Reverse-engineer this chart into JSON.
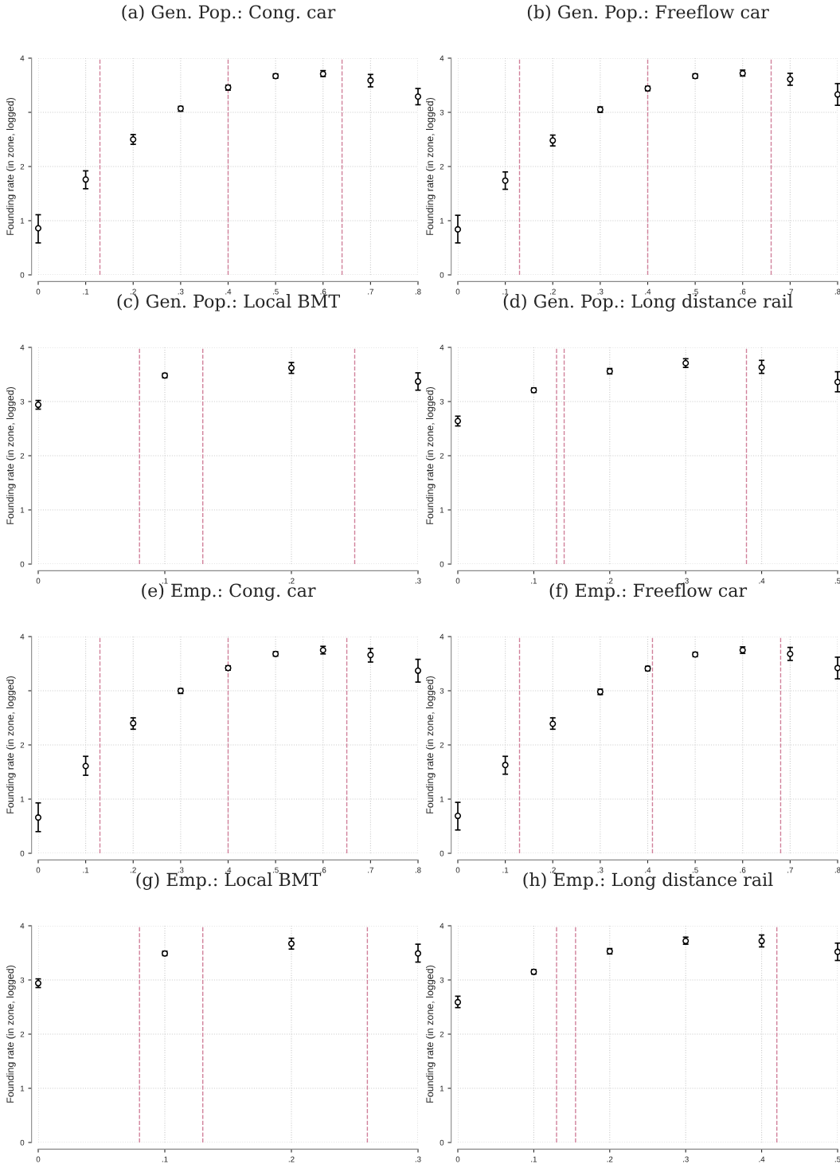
{
  "chart_data": [
    {
      "type": "scatter",
      "title": "(a) Gen. Pop.: Cong. car",
      "ylabel": "Founding rate (in zone, logged)",
      "x": [
        0,
        0.1,
        0.2,
        0.3,
        0.4,
        0.5,
        0.6,
        0.7,
        0.8
      ],
      "series": [
        {
          "color": "#000000",
          "values": [
            0.86,
            1.76,
            2.5,
            3.07,
            3.46,
            3.67,
            3.71,
            3.59,
            3.29
          ],
          "errors": [
            [
              0.59,
              1.11
            ],
            [
              1.59,
              1.92
            ],
            [
              2.41,
              2.59
            ],
            [
              3.02,
              3.11
            ],
            [
              3.41,
              3.5
            ],
            [
              3.63,
              3.71
            ],
            [
              3.66,
              3.77
            ],
            [
              3.47,
              3.7
            ],
            [
              3.14,
              3.44
            ]
          ]
        }
      ],
      "xlim": [
        0,
        0.8
      ],
      "xticks": [
        0,
        {
          "value": 0.1,
          "label": ".1"
        },
        {
          "value": 0.2,
          "label": ".2"
        },
        {
          "value": 0.3,
          "label": ".3"
        },
        {
          "value": 0.4,
          "label": ".4"
        },
        {
          "value": 0.5,
          "label": ".5"
        },
        {
          "value": 0.6,
          "label": ".6"
        },
        {
          "value": 0.7,
          "label": ".7"
        },
        {
          "value": 0.8,
          "label": ".8"
        }
      ],
      "ylim": [
        0,
        4
      ],
      "yticks": [
        0,
        1,
        2,
        {
          "value": 3,
          "label": null
        },
        4
      ],
      "grid": true,
      "marker": "circle",
      "ref_lines": [
        {
          "axis": "x",
          "value": 0.13,
          "color": "#d0809a",
          "line_style": "dashed"
        },
        {
          "axis": "x",
          "value": 0.4,
          "color": "#d0809a",
          "line_style": "dashed"
        },
        {
          "axis": "x",
          "value": 0.64,
          "color": "#d0809a",
          "line_style": "dashed"
        }
      ]
    },
    {
      "type": "scatter",
      "title": "(b) Gen. Pop.: Freeflow car",
      "ylabel": "Founding rate (in zone, logged)",
      "x": [
        0,
        0.1,
        0.2,
        0.3,
        0.4,
        0.5,
        0.6,
        0.7,
        0.8
      ],
      "series": [
        {
          "color": "#000000",
          "values": [
            0.84,
            1.74,
            2.48,
            3.05,
            3.44,
            3.67,
            3.72,
            3.61,
            3.33
          ],
          "errors": [
            [
              0.59,
              1.1
            ],
            [
              1.58,
              1.9
            ],
            [
              2.38,
              2.58
            ],
            [
              3.0,
              3.1
            ],
            [
              3.4,
              3.48
            ],
            [
              3.63,
              3.71
            ],
            [
              3.67,
              3.78
            ],
            [
              3.5,
              3.72
            ],
            [
              3.13,
              3.53
            ]
          ]
        }
      ],
      "xlim": [
        0,
        0.8
      ],
      "xticks": [
        0,
        {
          "value": 0.1,
          "label": ".1"
        },
        {
          "value": 0.2,
          "label": ".2"
        },
        {
          "value": 0.3,
          "label": ".3"
        },
        {
          "value": 0.4,
          "label": ".4"
        },
        {
          "value": 0.5,
          "label": ".5"
        },
        {
          "value": 0.6,
          "label": ".6"
        },
        {
          "value": 0.7,
          "label": ".7"
        },
        {
          "value": 0.8,
          "label": ".8"
        }
      ],
      "ylim": [
        0,
        4
      ],
      "yticks": [
        0,
        1,
        2,
        3,
        4
      ],
      "grid": true,
      "marker": "circle",
      "ref_lines": [
        {
          "axis": "x",
          "value": 0.13,
          "color": "#d0809a",
          "line_style": "dashed"
        },
        {
          "axis": "x",
          "value": 0.4,
          "color": "#d0809a",
          "line_style": "dashed"
        },
        {
          "axis": "x",
          "value": 0.66,
          "color": "#d0809a",
          "line_style": "dashed"
        }
      ]
    },
    {
      "type": "scatter",
      "title": "(c) Gen. Pop.: Local BMT",
      "ylabel": "Founding rate (in zone, logged)",
      "x": [
        0,
        0.1,
        0.2,
        0.3
      ],
      "series": [
        {
          "color": "#000000",
          "values": [
            2.94,
            3.48,
            3.62,
            3.37
          ],
          "errors": [
            [
              2.86,
              3.02
            ],
            [
              3.44,
              3.52
            ],
            [
              3.52,
              3.72
            ],
            [
              3.21,
              3.53
            ]
          ]
        }
      ],
      "xlim": [
        0,
        0.3
      ],
      "xticks": [
        0,
        {
          "value": 0.1,
          "label": ".1"
        },
        {
          "value": 0.2,
          "label": ".2"
        },
        {
          "value": 0.3,
          "label": ".3"
        }
      ],
      "ylim": [
        0,
        4
      ],
      "yticks": [
        0,
        1,
        2,
        3,
        4
      ],
      "grid": true,
      "marker": "circle",
      "ref_lines": [
        {
          "axis": "x",
          "value": 0.08,
          "color": "#d0809a",
          "line_style": "dashed"
        },
        {
          "axis": "x",
          "value": 0.13,
          "color": "#d0809a",
          "line_style": "dashed"
        },
        {
          "axis": "x",
          "value": 0.25,
          "color": "#d0809a",
          "line_style": "dashed"
        }
      ]
    },
    {
      "type": "scatter",
      "title": "(d) Gen. Pop.: Long distance rail",
      "ylabel": "Founding rate (in zone, logged)",
      "x": [
        0,
        0.1,
        0.2,
        0.3,
        0.4,
        0.5
      ],
      "series": [
        {
          "color": "#000000",
          "values": [
            2.64,
            3.21,
            3.56,
            3.71,
            3.63,
            3.36
          ],
          "errors": [
            [
              2.55,
              2.73
            ],
            [
              3.17,
              3.25
            ],
            [
              3.51,
              3.61
            ],
            [
              3.63,
              3.79
            ],
            [
              3.52,
              3.76
            ],
            [
              3.18,
              3.55
            ]
          ]
        }
      ],
      "xlim": [
        0,
        0.5
      ],
      "xticks": [
        0,
        {
          "value": 0.1,
          "label": ".1"
        },
        {
          "value": 0.2,
          "label": ".2"
        },
        {
          "value": 0.3,
          "label": ".3"
        },
        {
          "value": 0.4,
          "label": ".4"
        },
        {
          "value": 0.5,
          "label": ".5"
        }
      ],
      "ylim": [
        0,
        4
      ],
      "yticks": [
        0,
        1,
        2,
        3,
        4
      ],
      "grid": true,
      "marker": "circle",
      "ref_lines": [
        {
          "axis": "x",
          "value": 0.13,
          "color": "#d0809a",
          "line_style": "dashed"
        },
        {
          "axis": "x",
          "value": 0.14,
          "color": "#d0809a",
          "line_style": "dashed"
        },
        {
          "axis": "x",
          "value": 0.38,
          "color": "#d0809a",
          "line_style": "dashed"
        }
      ]
    },
    {
      "type": "scatter",
      "title": "(e) Emp.: Cong. car",
      "ylabel": "Founding rate (in zone, logged)",
      "x": [
        0,
        0.1,
        0.2,
        0.3,
        0.4,
        0.5,
        0.6,
        0.7,
        0.8
      ],
      "series": [
        {
          "color": "#000000",
          "values": [
            0.66,
            1.61,
            2.4,
            3.0,
            3.42,
            3.68,
            3.75,
            3.66,
            3.37
          ],
          "errors": [
            [
              0.4,
              0.93
            ],
            [
              1.44,
              1.79
            ],
            [
              2.29,
              2.5
            ],
            [
              2.95,
              3.04
            ],
            [
              3.38,
              3.46
            ],
            [
              3.64,
              3.72
            ],
            [
              3.68,
              3.82
            ],
            [
              3.53,
              3.78
            ],
            [
              3.16,
              3.58
            ]
          ]
        }
      ],
      "xlim": [
        0,
        0.8
      ],
      "xticks": [
        0,
        {
          "value": 0.1,
          "label": ".1"
        },
        {
          "value": 0.2,
          "label": ".2"
        },
        {
          "value": 0.3,
          "label": ".3"
        },
        {
          "value": 0.4,
          "label": ".4"
        },
        {
          "value": 0.5,
          "label": ".5"
        },
        {
          "value": 0.6,
          "label": ".6"
        },
        {
          "value": 0.7,
          "label": ".7"
        },
        {
          "value": 0.8,
          "label": ".8"
        }
      ],
      "ylim": [
        0,
        4
      ],
      "yticks": [
        0,
        1,
        2,
        {
          "value": 3,
          "label": null
        },
        4
      ],
      "grid": true,
      "marker": "circle",
      "ref_lines": [
        {
          "axis": "x",
          "value": 0.13,
          "color": "#d0809a",
          "line_style": "dashed"
        },
        {
          "axis": "x",
          "value": 0.4,
          "color": "#d0809a",
          "line_style": "dashed"
        },
        {
          "axis": "x",
          "value": 0.65,
          "color": "#d0809a",
          "line_style": "dashed"
        }
      ]
    },
    {
      "type": "scatter",
      "title": "(f) Emp.: Freeflow car",
      "ylabel": "Founding rate (in zone, logged)",
      "x": [
        0,
        0.1,
        0.2,
        0.3,
        0.4,
        0.5,
        0.6,
        0.7,
        0.8
      ],
      "series": [
        {
          "color": "#000000",
          "values": [
            0.69,
            1.63,
            2.39,
            2.98,
            3.41,
            3.67,
            3.75,
            3.68,
            3.42
          ],
          "errors": [
            [
              0.43,
              0.94
            ],
            [
              1.46,
              1.79
            ],
            [
              2.29,
              2.5
            ],
            [
              2.93,
              3.03
            ],
            [
              3.37,
              3.45
            ],
            [
              3.63,
              3.71
            ],
            [
              3.69,
              3.81
            ],
            [
              3.56,
              3.8
            ],
            [
              3.22,
              3.62
            ]
          ]
        }
      ],
      "xlim": [
        0,
        0.8
      ],
      "xticks": [
        0,
        {
          "value": 0.1,
          "label": ".1"
        },
        {
          "value": 0.2,
          "label": ".2"
        },
        {
          "value": 0.3,
          "label": ".3"
        },
        {
          "value": 0.4,
          "label": ".4"
        },
        {
          "value": 0.5,
          "label": ".5"
        },
        {
          "value": 0.6,
          "label": ".6"
        },
        {
          "value": 0.7,
          "label": ".7"
        },
        {
          "value": 0.8,
          "label": ".8"
        }
      ],
      "ylim": [
        0,
        4
      ],
      "yticks": [
        0,
        1,
        2,
        3,
        4
      ],
      "grid": true,
      "marker": "circle",
      "ref_lines": [
        {
          "axis": "x",
          "value": 0.13,
          "color": "#d0809a",
          "line_style": "dashed"
        },
        {
          "axis": "x",
          "value": 0.41,
          "color": "#d0809a",
          "line_style": "dashed"
        },
        {
          "axis": "x",
          "value": 0.68,
          "color": "#d0809a",
          "line_style": "dashed"
        }
      ]
    },
    {
      "type": "scatter",
      "title": "(g) Emp.: Local BMT",
      "ylabel": "Founding rate (in zone, logged)",
      "x": [
        0,
        0.1,
        0.2,
        0.3
      ],
      "series": [
        {
          "color": "#000000",
          "values": [
            2.94,
            3.49,
            3.67,
            3.49
          ],
          "errors": [
            [
              2.86,
              3.02
            ],
            [
              3.45,
              3.53
            ],
            [
              3.57,
              3.77
            ],
            [
              3.33,
              3.66
            ]
          ]
        }
      ],
      "xlim": [
        0,
        0.3
      ],
      "xticks": [
        0,
        {
          "value": 0.1,
          "label": ".1"
        },
        {
          "value": 0.2,
          "label": ".2"
        },
        {
          "value": 0.3,
          "label": ".3"
        }
      ],
      "ylim": [
        0,
        4
      ],
      "yticks": [
        0,
        1,
        2,
        3,
        4
      ],
      "grid": true,
      "marker": "circle",
      "ref_lines": [
        {
          "axis": "x",
          "value": 0.08,
          "color": "#d0809a",
          "line_style": "dashed"
        },
        {
          "axis": "x",
          "value": 0.13,
          "color": "#d0809a",
          "line_style": "dashed"
        },
        {
          "axis": "x",
          "value": 0.26,
          "color": "#d0809a",
          "line_style": "dashed"
        }
      ]
    },
    {
      "type": "scatter",
      "title": "(h) Emp.: Long distance rail",
      "ylabel": "Founding rate (in zone, logged)",
      "x": [
        0,
        0.1,
        0.2,
        0.3,
        0.4,
        0.5
      ],
      "series": [
        {
          "color": "#000000",
          "values": [
            2.59,
            3.15,
            3.53,
            3.72,
            3.72,
            3.52
          ],
          "errors": [
            [
              2.49,
              2.7
            ],
            [
              3.11,
              3.19
            ],
            [
              3.48,
              3.58
            ],
            [
              3.66,
              3.79
            ],
            [
              3.61,
              3.83
            ],
            [
              3.36,
              3.68
            ]
          ]
        }
      ],
      "xlim": [
        0,
        0.5
      ],
      "xticks": [
        0,
        {
          "value": 0.1,
          "label": ".1"
        },
        {
          "value": 0.2,
          "label": ".2"
        },
        {
          "value": 0.3,
          "label": ".3"
        },
        {
          "value": 0.4,
          "label": ".4"
        },
        {
          "value": 0.5,
          "label": ".5"
        }
      ],
      "ylim": [
        0,
        4
      ],
      "yticks": [
        0,
        1,
        2,
        3,
        4
      ],
      "grid": true,
      "marker": "circle",
      "ref_lines": [
        {
          "axis": "x",
          "value": 0.13,
          "color": "#d0809a",
          "line_style": "dashed"
        },
        {
          "axis": "x",
          "value": 0.155,
          "color": "#d0809a",
          "line_style": "dashed"
        },
        {
          "axis": "x",
          "value": 0.42,
          "color": "#d0809a",
          "line_style": "dashed"
        }
      ]
    }
  ]
}
